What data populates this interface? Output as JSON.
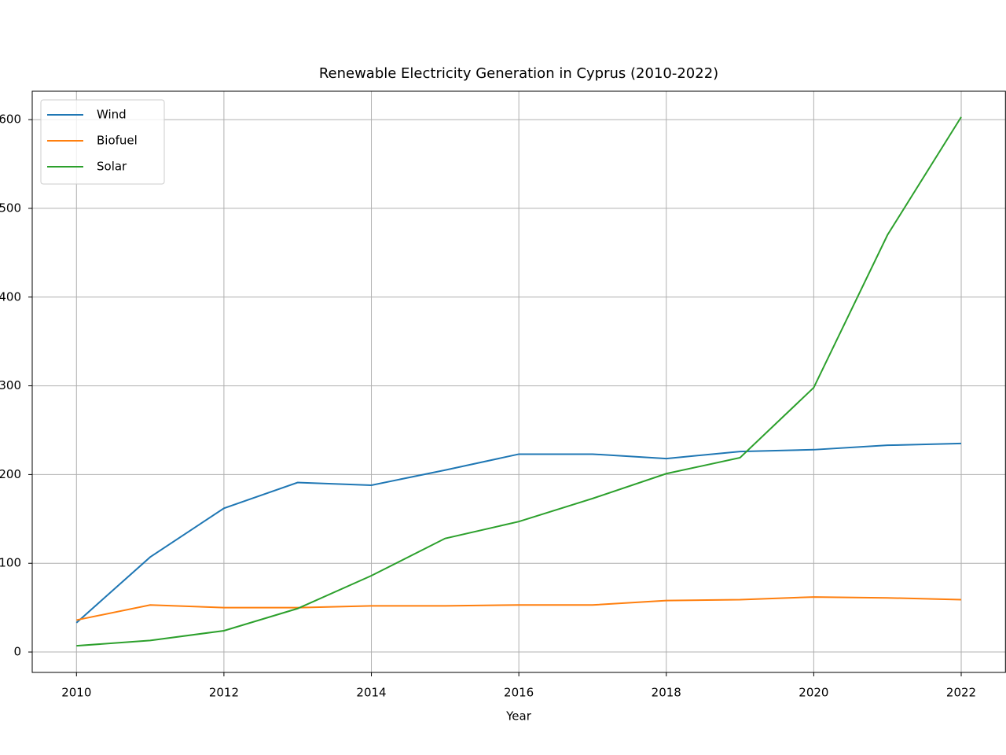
{
  "chart_data": {
    "type": "line",
    "title": "Renewable Electricity Generation in Cyprus (2010-2022)",
    "x_label": "Year",
    "x": [
      2010,
      2011,
      2012,
      2013,
      2014,
      2015,
      2016,
      2017,
      2018,
      2019,
      2020,
      2021,
      2022
    ],
    "series": [
      {
        "name": "Wind",
        "color": "#1f77b4",
        "values": [
          33,
          107,
          162,
          191,
          188,
          205,
          223,
          223,
          218,
          226,
          228,
          233,
          235
        ]
      },
      {
        "name": "Biofuel",
        "color": "#ff7f0e",
        "values": [
          36,
          53,
          50,
          50,
          52,
          52,
          53,
          53,
          58,
          59,
          62,
          61,
          59
        ]
      },
      {
        "name": "Solar",
        "color": "#2ca02c",
        "values": [
          7,
          13,
          24,
          49,
          86,
          128,
          147,
          173,
          201,
          219,
          298,
          470,
          603
        ]
      }
    ],
    "xlim": [
      2009.4,
      2022.6
    ],
    "xticks": [
      2010,
      2012,
      2014,
      2016,
      2018,
      2020,
      2022
    ],
    "ylim": [
      -23,
      632
    ],
    "yticks": [
      0,
      100,
      200,
      300,
      400,
      500,
      600
    ],
    "grid": true,
    "legend": "upper left"
  }
}
